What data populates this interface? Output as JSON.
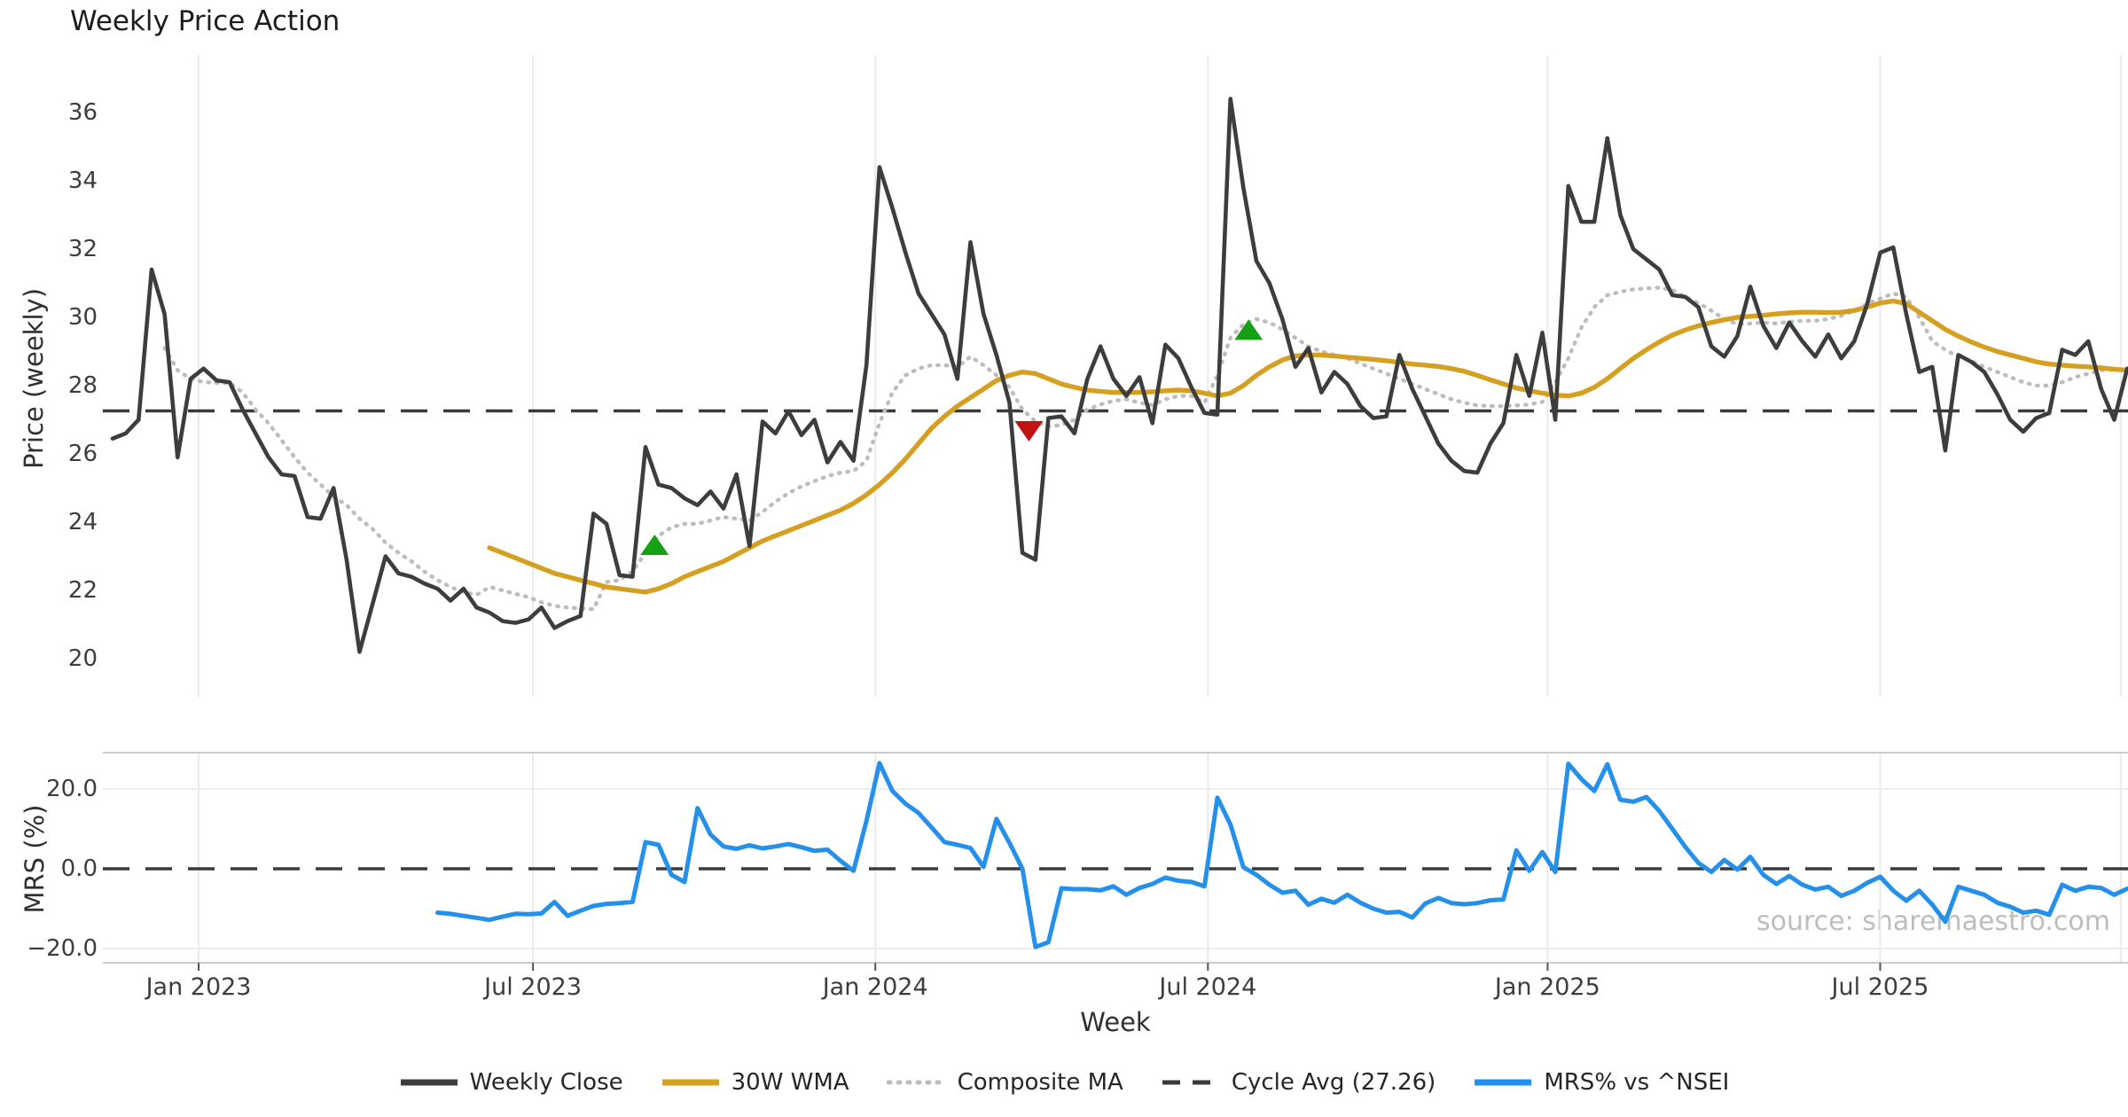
{
  "title": "Weekly Price Action",
  "axes": {
    "price_ylabel": "Price (weekly)",
    "mrs_ylabel": "MRS (%)",
    "xlabel": "Week"
  },
  "watermark": "source: sharemaestro.com",
  "legend": [
    {
      "label": "Weekly Close",
      "style": "solid",
      "color": "#3d3d3d"
    },
    {
      "label": "30W WMA",
      "style": "solid",
      "color": "#d5a021"
    },
    {
      "label": "Composite MA",
      "style": "dotted",
      "color": "#bdbdbd"
    },
    {
      "label": "Cycle Avg (27.26)",
      "style": "dashed",
      "color": "#3a3a3a"
    },
    {
      "label": "MRS% vs ^NSEI",
      "style": "solid",
      "color": "#2490ea"
    }
  ],
  "chart_data": {
    "type": "line",
    "x_axis": {
      "unit": "weekly",
      "start": "mid-Nov 2022",
      "ticks": [
        {
          "label": "Jan 2023",
          "week": 6.62
        },
        {
          "label": "Jul 2023",
          "week": 32.34
        },
        {
          "label": "Jan 2024",
          "week": 58.68
        },
        {
          "label": "Jul 2024",
          "week": 84.27
        },
        {
          "label": "Jan 2025",
          "week": 110.4
        },
        {
          "label": "Jul 2025",
          "week": 135.99
        }
      ],
      "extra_gridline_week": 154.5
    },
    "price_panel": {
      "yticks": [
        36,
        34,
        32,
        30,
        28,
        26,
        24,
        22,
        20
      ],
      "cycle_avg": 27.26,
      "markers": {
        "buy": {
          "color": "#16a016",
          "shape": "triangle-up",
          "points": [
            {
              "week": 41.7,
              "value": 23.3
            },
            {
              "week": 87.4,
              "value": 29.6
            }
          ]
        },
        "sell": {
          "color": "#c41111",
          "shape": "triangle-down",
          "points": [
            {
              "week": 70.5,
              "value": 26.7
            }
          ]
        }
      },
      "series": [
        {
          "name": "Weekly Close",
          "color": "#3d3d3d",
          "style": "solid",
          "width": 4.6,
          "start": 0,
          "values": [
            26.45,
            26.6,
            27.0,
            31.4,
            30.1,
            25.9,
            28.2,
            28.5,
            28.15,
            28.1,
            27.3,
            26.6,
            25.9,
            25.4,
            25.35,
            24.15,
            24.1,
            25.0,
            22.9,
            20.2,
            21.6,
            23.0,
            22.5,
            22.4,
            22.2,
            22.05,
            21.7,
            22.05,
            21.5,
            21.35,
            21.1,
            21.05,
            21.15,
            21.5,
            20.9,
            21.1,
            21.25,
            24.25,
            23.95,
            22.45,
            22.4,
            26.2,
            25.1,
            25.0,
            24.7,
            24.5,
            24.9,
            24.4,
            25.4,
            23.3,
            26.95,
            26.6,
            27.25,
            26.55,
            27.0,
            25.75,
            26.35,
            25.8,
            28.6,
            34.4,
            33.2,
            31.9,
            30.7,
            30.1,
            29.5,
            28.2,
            32.2,
            30.1,
            28.9,
            27.5,
            23.1,
            22.9,
            27.05,
            27.1,
            26.6,
            28.2,
            29.15,
            28.2,
            27.7,
            28.25,
            26.9,
            29.2,
            28.8,
            27.95,
            27.2,
            27.15,
            36.4,
            33.8,
            31.65,
            31.0,
            29.95,
            28.55,
            29.1,
            27.8,
            28.4,
            28.05,
            27.4,
            27.05,
            27.1,
            28.9,
            27.9,
            27.1,
            26.3,
            25.8,
            25.5,
            25.45,
            26.3,
            26.9,
            28.9,
            27.7,
            29.55,
            27.0,
            33.85,
            32.8,
            32.8,
            35.25,
            33.0,
            32.0,
            31.7,
            31.4,
            30.65,
            30.6,
            30.3,
            29.15,
            28.85,
            29.45,
            30.9,
            29.75,
            29.1,
            29.85,
            29.3,
            28.85,
            29.5,
            28.8,
            29.3,
            30.4,
            31.9,
            32.05,
            30.1,
            28.4,
            28.55,
            26.1,
            28.9,
            28.7,
            28.4,
            27.75,
            27.0,
            26.65,
            27.05,
            27.2,
            29.05,
            28.9,
            29.3,
            27.9,
            27.0,
            28.5
          ]
        },
        {
          "name": "30W WMA",
          "color": "#d5a021",
          "style": "solid",
          "width": 5.4,
          "start": 29,
          "values": [
            23.25,
            23.1,
            22.95,
            22.8,
            22.65,
            22.5,
            22.4,
            22.3,
            22.2,
            22.1,
            22.05,
            22.0,
            21.95,
            22.05,
            22.2,
            22.4,
            22.55,
            22.7,
            22.85,
            23.05,
            23.25,
            23.45,
            23.6,
            23.75,
            23.9,
            24.05,
            24.2,
            24.35,
            24.55,
            24.8,
            25.1,
            25.45,
            25.85,
            26.3,
            26.75,
            27.1,
            27.4,
            27.65,
            27.9,
            28.15,
            28.3,
            28.4,
            28.35,
            28.2,
            28.05,
            27.95,
            27.87,
            27.83,
            27.8,
            27.8,
            27.8,
            27.82,
            27.85,
            27.87,
            27.85,
            27.78,
            27.7,
            27.78,
            28.0,
            28.3,
            28.55,
            28.75,
            28.87,
            28.9,
            28.9,
            28.87,
            28.83,
            28.8,
            28.77,
            28.73,
            28.68,
            28.63,
            28.6,
            28.56,
            28.5,
            28.42,
            28.3,
            28.17,
            28.05,
            27.93,
            27.85,
            27.78,
            27.72,
            27.7,
            27.78,
            27.95,
            28.2,
            28.5,
            28.8,
            29.05,
            29.28,
            29.48,
            29.63,
            29.75,
            29.85,
            29.93,
            30.0,
            30.03,
            30.06,
            30.1,
            30.13,
            30.15,
            30.15,
            30.14,
            30.15,
            30.2,
            30.3,
            30.42,
            30.48,
            30.4,
            30.15,
            29.9,
            29.65,
            29.45,
            29.28,
            29.13,
            29.0,
            28.9,
            28.8,
            28.7,
            28.63,
            28.6,
            28.57,
            28.55,
            28.52,
            28.48,
            28.45
          ]
        },
        {
          "name": "Composite MA",
          "color": "#bdbdbd",
          "style": "dotted",
          "width": 4.4,
          "start": 4,
          "values": [
            29.1,
            28.45,
            28.2,
            28.1,
            28.08,
            28.08,
            27.8,
            27.3,
            26.9,
            26.4,
            25.9,
            25.45,
            25.1,
            24.75,
            24.5,
            24.1,
            23.8,
            23.4,
            23.1,
            22.85,
            22.55,
            22.3,
            22.1,
            21.95,
            21.87,
            22.1,
            22.0,
            21.9,
            21.8,
            21.65,
            21.55,
            21.5,
            21.47,
            21.45,
            22.25,
            22.3,
            22.55,
            23.1,
            23.6,
            23.85,
            23.95,
            23.95,
            24.05,
            24.15,
            24.1,
            24.05,
            24.3,
            24.6,
            24.85,
            25.05,
            25.2,
            25.35,
            25.45,
            25.5,
            25.8,
            26.9,
            27.8,
            28.3,
            28.5,
            28.6,
            28.6,
            28.55,
            28.85,
            28.6,
            28.3,
            27.95,
            27.3,
            26.95,
            26.8,
            26.85,
            27.0,
            27.3,
            27.45,
            27.55,
            27.6,
            27.5,
            27.43,
            27.6,
            27.7,
            27.7,
            27.5,
            28.3,
            29.4,
            29.8,
            29.95,
            29.85,
            29.65,
            29.4,
            29.15,
            29.0,
            28.9,
            28.8,
            28.65,
            28.5,
            28.35,
            28.2,
            28.05,
            27.9,
            27.75,
            27.6,
            27.5,
            27.42,
            27.4,
            27.4,
            27.42,
            27.45,
            27.52,
            28.1,
            28.8,
            29.7,
            30.3,
            30.65,
            30.75,
            30.82,
            30.85,
            30.87,
            30.8,
            30.6,
            30.42,
            30.2,
            29.95,
            29.8,
            29.82,
            29.85,
            29.82,
            29.87,
            29.9,
            29.9,
            29.95,
            30.05,
            30.2,
            30.4,
            30.55,
            30.7,
            30.6,
            30.0,
            29.3,
            29.05,
            28.85,
            28.72,
            28.55,
            28.4,
            28.25,
            28.1,
            28.0,
            28.0,
            28.1,
            28.25,
            28.35,
            28.45,
            28.47,
            28.47
          ]
        }
      ]
    },
    "mrs_panel": {
      "yticks": [
        {
          "label": "20.0",
          "value": 20
        },
        {
          "label": "0.0",
          "value": 0
        },
        {
          "label": "−20.0",
          "value": -20
        }
      ],
      "zero_line_dashed": true,
      "series": [
        {
          "name": "MRS% vs ^NSEI",
          "color": "#2490ea",
          "style": "solid",
          "width": 5.0,
          "start": 25,
          "values": [
            -11.0,
            -11.3,
            -11.8,
            -12.3,
            -12.8,
            -12.0,
            -11.3,
            -11.4,
            -11.2,
            -8.3,
            -11.8,
            -10.5,
            -9.3,
            -8.8,
            -8.6,
            -8.3,
            6.7,
            6.0,
            -1.5,
            -3.3,
            15.2,
            8.6,
            5.6,
            5.0,
            5.9,
            5.1,
            5.6,
            6.2,
            5.4,
            4.5,
            4.8,
            2.0,
            -0.5,
            12.0,
            26.5,
            19.5,
            16.3,
            14.0,
            10.4,
            6.7,
            6.0,
            5.2,
            0.5,
            12.5,
            6.5,
            0.0,
            -19.6,
            -18.4,
            -4.9,
            -5.1,
            -5.1,
            -5.4,
            -4.4,
            -6.5,
            -4.8,
            -3.8,
            -2.2,
            -3.0,
            -3.3,
            -4.4,
            17.8,
            11.1,
            0.4,
            -1.5,
            -4.0,
            -6.0,
            -5.5,
            -9.0,
            -7.5,
            -8.5,
            -6.5,
            -8.5,
            -10.0,
            -11.0,
            -10.8,
            -12.2,
            -8.7,
            -7.3,
            -8.6,
            -8.9,
            -8.6,
            -7.9,
            -7.7,
            4.6,
            -0.5,
            4.2,
            -0.8,
            26.3,
            22.5,
            19.5,
            26.2,
            17.3,
            16.8,
            18.0,
            14.5,
            10.0,
            5.5,
            1.5,
            -0.8,
            2.2,
            -0.2,
            3.0,
            -1.5,
            -3.8,
            -1.8,
            -4.0,
            -5.2,
            -4.5,
            -6.8,
            -5.5,
            -3.5,
            -2.0,
            -5.5,
            -8.0,
            -5.5,
            -9.0,
            -13.3,
            -4.5,
            -5.5,
            -6.5,
            -8.5,
            -9.5,
            -11.0,
            -10.5,
            -11.5,
            -4.0,
            -5.5,
            -4.5,
            -4.8,
            -6.5,
            -5.0
          ]
        }
      ]
    }
  }
}
